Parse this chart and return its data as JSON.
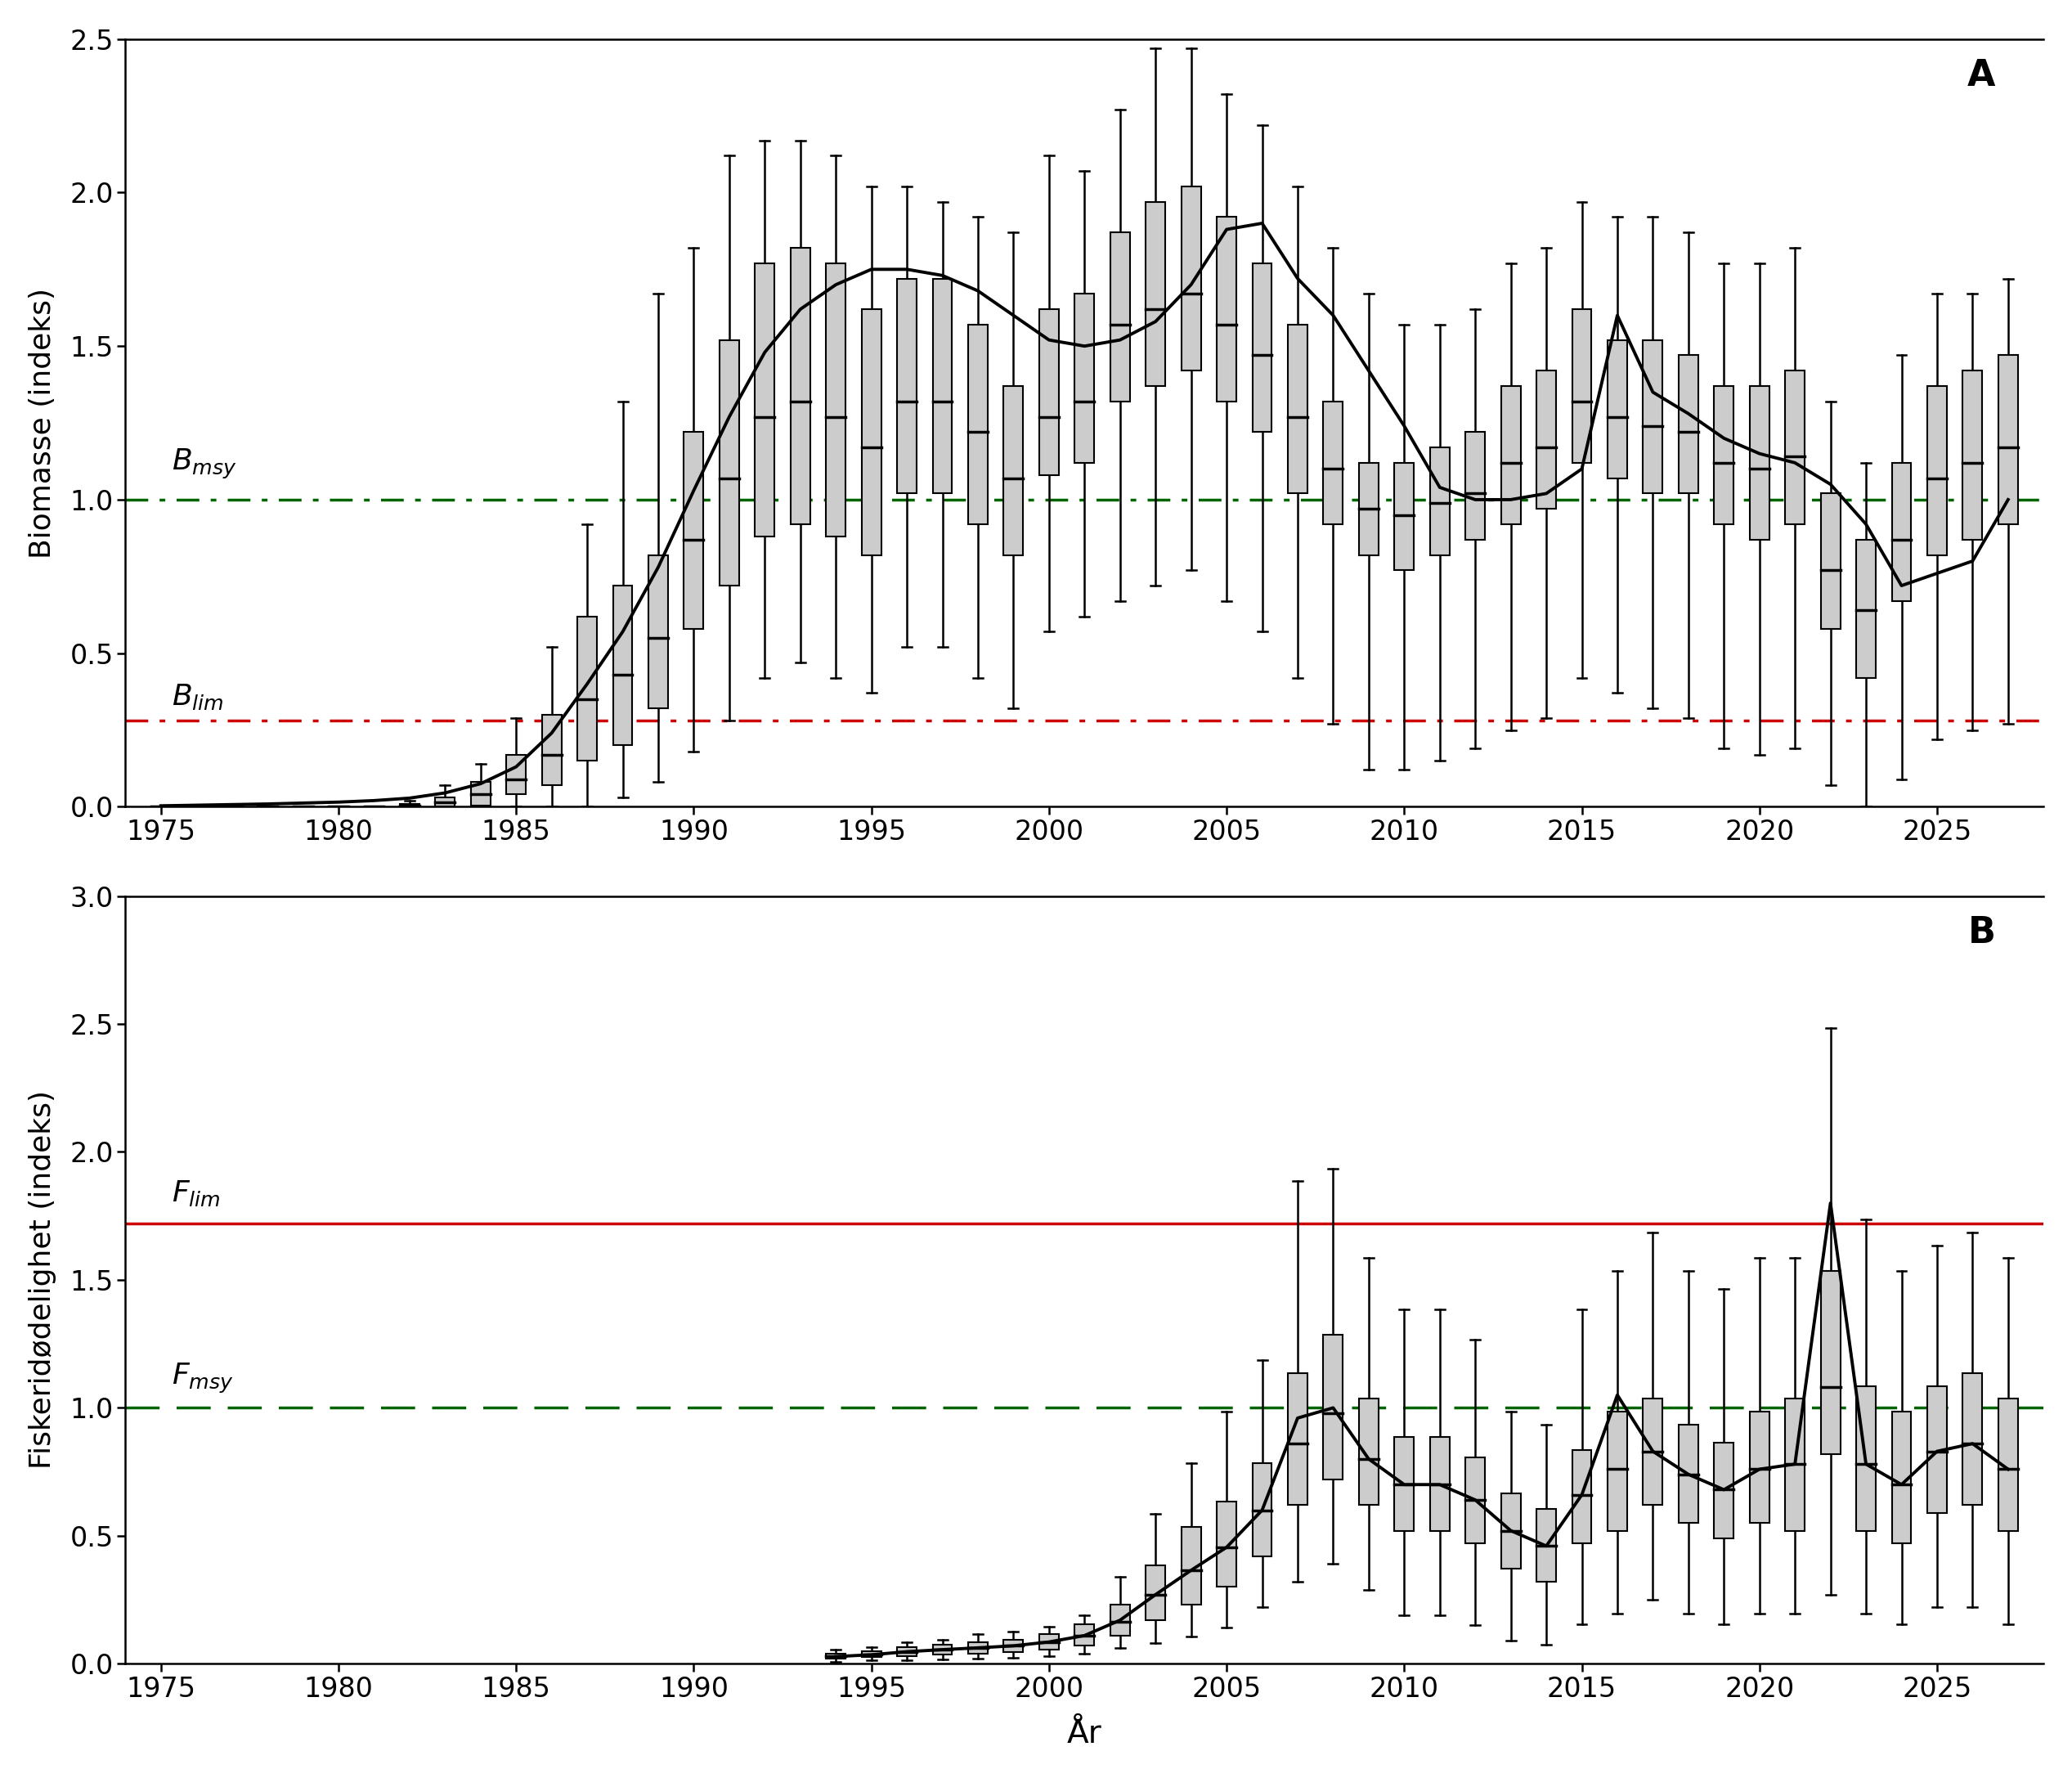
{
  "panel_A": {
    "title": "A",
    "ylabel": "Biomasse (indeks)",
    "ylim": [
      0,
      2.5
    ],
    "yticks": [
      0.0,
      0.5,
      1.0,
      1.5,
      2.0,
      2.5
    ],
    "xlim": [
      1974,
      2028
    ],
    "xticks": [
      1975,
      1980,
      1985,
      1990,
      1995,
      2000,
      2005,
      2010,
      2015,
      2020,
      2025
    ],
    "B_msy": 1.0,
    "B_lim": 0.28,
    "boxes": {
      "years": [
        1975,
        1976,
        1977,
        1978,
        1979,
        1980,
        1981,
        1982,
        1983,
        1984,
        1985,
        1986,
        1987,
        1988,
        1989,
        1990,
        1991,
        1992,
        1993,
        1994,
        1995,
        1996,
        1997,
        1998,
        1999,
        2000,
        2001,
        2002,
        2003,
        2004,
        2005,
        2006,
        2007,
        2008,
        2009,
        2010,
        2011,
        2012,
        2013,
        2014,
        2015,
        2016,
        2017,
        2018,
        2019,
        2020,
        2021,
        2022,
        2023,
        2024,
        2025,
        2026,
        2027
      ],
      "q1": [
        0.0,
        0.0,
        0.0,
        0.0,
        0.0,
        0.0,
        0.0,
        0.0,
        0.0,
        0.005,
        0.04,
        0.07,
        0.15,
        0.2,
        0.32,
        0.58,
        0.72,
        0.88,
        0.92,
        0.88,
        0.82,
        1.02,
        1.02,
        0.92,
        0.82,
        1.08,
        1.12,
        1.32,
        1.37,
        1.42,
        1.32,
        1.22,
        1.02,
        0.92,
        0.82,
        0.77,
        0.82,
        0.87,
        0.92,
        0.97,
        1.12,
        1.07,
        1.02,
        1.02,
        0.92,
        0.87,
        0.92,
        0.58,
        0.42,
        0.67,
        0.82,
        0.87,
        0.92
      ],
      "q3": [
        0.0,
        0.0,
        0.0,
        0.0,
        0.0,
        0.0,
        0.0,
        0.01,
        0.03,
        0.08,
        0.17,
        0.3,
        0.62,
        0.72,
        0.82,
        1.22,
        1.52,
        1.77,
        1.82,
        1.77,
        1.62,
        1.72,
        1.72,
        1.57,
        1.37,
        1.62,
        1.67,
        1.87,
        1.97,
        2.02,
        1.92,
        1.77,
        1.57,
        1.32,
        1.12,
        1.12,
        1.17,
        1.22,
        1.37,
        1.42,
        1.62,
        1.52,
        1.52,
        1.47,
        1.37,
        1.37,
        1.42,
        1.02,
        0.87,
        1.12,
        1.37,
        1.42,
        1.47
      ],
      "median": [
        0.0,
        0.0,
        0.0,
        0.0,
        0.0,
        0.0,
        0.0,
        0.005,
        0.015,
        0.04,
        0.09,
        0.17,
        0.35,
        0.43,
        0.55,
        0.87,
        1.07,
        1.27,
        1.32,
        1.27,
        1.17,
        1.32,
        1.32,
        1.22,
        1.07,
        1.27,
        1.32,
        1.57,
        1.62,
        1.67,
        1.57,
        1.47,
        1.27,
        1.1,
        0.97,
        0.95,
        0.99,
        1.02,
        1.12,
        1.17,
        1.32,
        1.27,
        1.24,
        1.22,
        1.12,
        1.1,
        1.14,
        0.77,
        0.64,
        0.87,
        1.07,
        1.12,
        1.17
      ],
      "whisker_low": [
        0.0,
        0.0,
        0.0,
        0.0,
        0.0,
        0.0,
        0.0,
        0.0,
        0.0,
        0.0,
        0.0,
        0.0,
        0.0,
        0.03,
        0.08,
        0.18,
        0.28,
        0.42,
        0.47,
        0.42,
        0.37,
        0.52,
        0.52,
        0.42,
        0.32,
        0.57,
        0.62,
        0.67,
        0.72,
        0.77,
        0.67,
        0.57,
        0.42,
        0.27,
        0.12,
        0.12,
        0.15,
        0.19,
        0.25,
        0.29,
        0.42,
        0.37,
        0.32,
        0.29,
        0.19,
        0.17,
        0.19,
        0.07,
        0.0,
        0.09,
        0.22,
        0.25,
        0.27
      ],
      "whisker_high": [
        0.0,
        0.0,
        0.0,
        0.0,
        0.0,
        0.0,
        0.0,
        0.02,
        0.07,
        0.14,
        0.29,
        0.52,
        0.92,
        1.32,
        1.67,
        1.82,
        2.12,
        2.17,
        2.17,
        2.12,
        2.02,
        2.02,
        1.97,
        1.92,
        1.87,
        2.12,
        2.07,
        2.27,
        2.47,
        2.47,
        2.32,
        2.22,
        2.02,
        1.82,
        1.67,
        1.57,
        1.57,
        1.62,
        1.77,
        1.82,
        1.97,
        1.92,
        1.92,
        1.87,
        1.77,
        1.77,
        1.82,
        1.32,
        1.12,
        1.47,
        1.67,
        1.67,
        1.72
      ]
    },
    "smooth_line": {
      "years": [
        1975,
        1976,
        1977,
        1978,
        1979,
        1980,
        1981,
        1982,
        1983,
        1984,
        1985,
        1986,
        1987,
        1988,
        1989,
        1990,
        1991,
        1992,
        1993,
        1994,
        1995,
        1996,
        1997,
        1998,
        1999,
        2000,
        2001,
        2002,
        2003,
        2004,
        2005,
        2006,
        2007,
        2008,
        2009,
        2010,
        2011,
        2012,
        2013,
        2014,
        2015,
        2016,
        2017,
        2018,
        2019,
        2020,
        2021,
        2022,
        2023,
        2024,
        2025,
        2026,
        2027
      ],
      "values": [
        0.003,
        0.005,
        0.007,
        0.009,
        0.012,
        0.015,
        0.02,
        0.028,
        0.045,
        0.075,
        0.13,
        0.24,
        0.4,
        0.57,
        0.78,
        1.03,
        1.27,
        1.48,
        1.62,
        1.7,
        1.75,
        1.75,
        1.73,
        1.68,
        1.6,
        1.52,
        1.5,
        1.52,
        1.58,
        1.7,
        1.88,
        1.9,
        1.72,
        1.6,
        1.42,
        1.24,
        1.04,
        1.0,
        1.0,
        1.02,
        1.1,
        1.6,
        1.35,
        1.28,
        1.2,
        1.15,
        1.12,
        1.05,
        0.92,
        0.72,
        0.76,
        0.8,
        1.0
      ]
    }
  },
  "panel_B": {
    "title": "B",
    "ylabel": "Fiskeridødelighet (indeks)",
    "ylim": [
      0,
      3.0
    ],
    "yticks": [
      0.0,
      0.5,
      1.0,
      1.5,
      2.0,
      2.5,
      3.0
    ],
    "xlim": [
      1974,
      2028
    ],
    "xticks": [
      1975,
      1980,
      1985,
      1990,
      1995,
      2000,
      2005,
      2010,
      2015,
      2020,
      2025
    ],
    "F_lim": 1.72,
    "F_msy": 1.0,
    "boxes": {
      "years": [
        1994,
        1995,
        1996,
        1997,
        1998,
        1999,
        2000,
        2001,
        2002,
        2003,
        2004,
        2005,
        2006,
        2007,
        2008,
        2009,
        2010,
        2011,
        2012,
        2013,
        2014,
        2015,
        2016,
        2017,
        2018,
        2019,
        2020,
        2021,
        2022,
        2023,
        2024,
        2025,
        2026,
        2027
      ],
      "q1": [
        0.02,
        0.025,
        0.03,
        0.035,
        0.04,
        0.045,
        0.055,
        0.07,
        0.11,
        0.17,
        0.23,
        0.3,
        0.42,
        0.62,
        0.72,
        0.62,
        0.52,
        0.52,
        0.47,
        0.37,
        0.32,
        0.47,
        0.52,
        0.62,
        0.55,
        0.49,
        0.55,
        0.52,
        0.82,
        0.52,
        0.47,
        0.59,
        0.62,
        0.52
      ],
      "q3": [
        0.038,
        0.048,
        0.065,
        0.075,
        0.085,
        0.095,
        0.115,
        0.155,
        0.23,
        0.385,
        0.535,
        0.635,
        0.785,
        1.135,
        1.285,
        1.035,
        0.885,
        0.885,
        0.805,
        0.665,
        0.605,
        0.835,
        0.985,
        1.035,
        0.935,
        0.865,
        0.985,
        1.035,
        1.535,
        1.085,
        0.985,
        1.085,
        1.135,
        1.035
      ],
      "median": [
        0.028,
        0.035,
        0.047,
        0.055,
        0.062,
        0.07,
        0.085,
        0.11,
        0.165,
        0.27,
        0.365,
        0.455,
        0.6,
        0.86,
        0.98,
        0.8,
        0.7,
        0.7,
        0.64,
        0.52,
        0.46,
        0.66,
        0.76,
        0.83,
        0.74,
        0.68,
        0.76,
        0.78,
        1.08,
        0.78,
        0.7,
        0.83,
        0.86,
        0.76
      ],
      "whisker_low": [
        0.008,
        0.012,
        0.015,
        0.018,
        0.02,
        0.023,
        0.03,
        0.04,
        0.06,
        0.08,
        0.105,
        0.14,
        0.22,
        0.32,
        0.39,
        0.29,
        0.19,
        0.19,
        0.15,
        0.09,
        0.075,
        0.155,
        0.195,
        0.25,
        0.195,
        0.155,
        0.195,
        0.195,
        0.27,
        0.195,
        0.155,
        0.22,
        0.22,
        0.155
      ],
      "whisker_high": [
        0.055,
        0.065,
        0.085,
        0.095,
        0.115,
        0.125,
        0.145,
        0.19,
        0.34,
        0.585,
        0.785,
        0.985,
        1.185,
        1.885,
        1.935,
        1.585,
        1.385,
        1.385,
        1.265,
        0.985,
        0.935,
        1.385,
        1.535,
        1.685,
        1.535,
        1.465,
        1.585,
        1.585,
        2.485,
        1.735,
        1.535,
        1.635,
        1.685,
        1.585
      ]
    },
    "line": {
      "years": [
        1994,
        1995,
        1996,
        1997,
        1998,
        1999,
        2000,
        2001,
        2002,
        2003,
        2004,
        2005,
        2006,
        2007,
        2008,
        2009,
        2010,
        2011,
        2012,
        2013,
        2014,
        2015,
        2016,
        2017,
        2018,
        2019,
        2020,
        2021,
        2022,
        2023,
        2024,
        2025,
        2026,
        2027
      ],
      "values": [
        0.028,
        0.035,
        0.047,
        0.055,
        0.062,
        0.07,
        0.085,
        0.11,
        0.17,
        0.27,
        0.365,
        0.455,
        0.6,
        0.96,
        1.0,
        0.8,
        0.7,
        0.7,
        0.64,
        0.52,
        0.46,
        0.66,
        1.05,
        0.83,
        0.74,
        0.68,
        0.76,
        0.78,
        1.8,
        0.78,
        0.7,
        0.83,
        0.86,
        0.76
      ]
    }
  },
  "xlabel": "År",
  "box_width": 0.55,
  "box_color": "#cccccc",
  "box_edge_color": "#000000",
  "line_color": "#000000",
  "B_msy_color": "#006400",
  "B_lim_color": "#CC0000",
  "F_lim_color": "#CC0000",
  "F_msy_color": "#006400"
}
